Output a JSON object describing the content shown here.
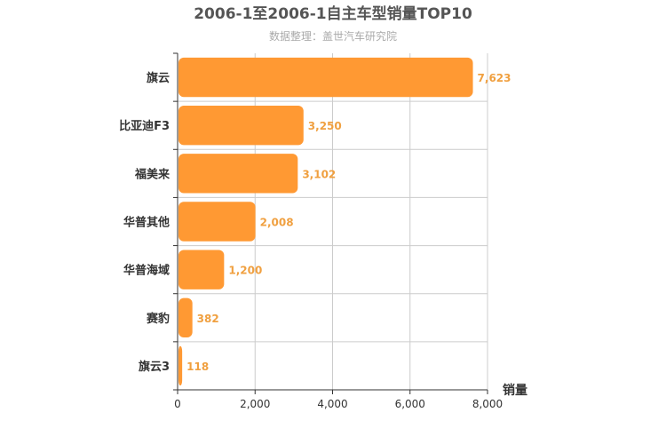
{
  "chart_data": {
    "type": "bar",
    "orientation": "horizontal",
    "title": "2006-1至2006-1自主车型销量TOP10",
    "subtitle": "数据整理：盖世汽车研究院",
    "categories": [
      "旗云",
      "比亚迪F3",
      "福美来",
      "华普其他",
      "华普海域",
      "赛豹",
      "旗云3"
    ],
    "values": [
      7623,
      3250,
      3102,
      2008,
      1200,
      382,
      118
    ],
    "value_labels": [
      "7,623",
      "3,250",
      "3,102",
      "2,008",
      "1,200",
      "382",
      "118"
    ],
    "xlabel": "销量",
    "ylabel": "",
    "xlim": [
      0,
      8000
    ],
    "xticks": [
      0,
      2000,
      4000,
      6000,
      8000
    ],
    "xtick_labels": [
      "0",
      "2,000",
      "4,000",
      "6,000",
      "8,000"
    ],
    "bar_color": "#ff9933",
    "label_color": "#f0a040",
    "grid": true
  }
}
